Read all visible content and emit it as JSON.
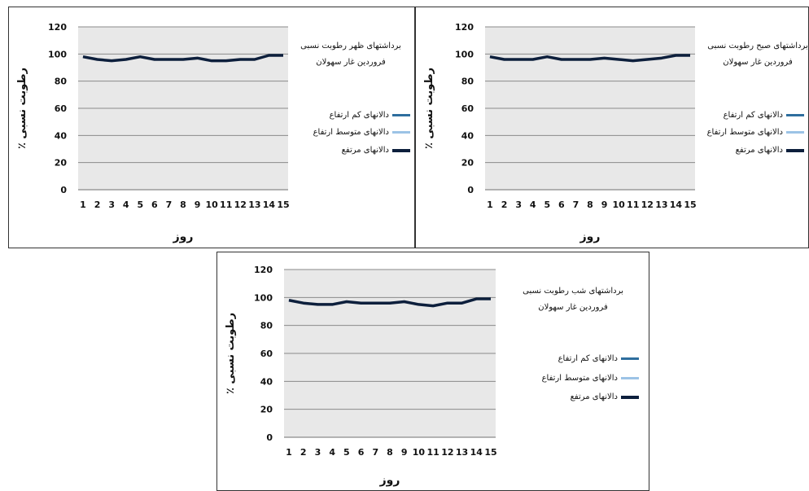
{
  "chart_data": [
    {
      "type": "line",
      "title": "برداشتهای ظهر رطوبت نسبی فروردین غار سهولان",
      "title_lines": [
        "برداشتهای ظهر رطوبت نسبی",
        "فروردین غار سهولان"
      ],
      "xlabel": "روز",
      "ylabel": "رطوبت نسبی ٪",
      "x": [
        1,
        2,
        3,
        4,
        5,
        6,
        7,
        8,
        9,
        10,
        11,
        12,
        13,
        14,
        15
      ],
      "ylim": [
        0,
        120
      ],
      "yticks": [
        0,
        20,
        40,
        60,
        80,
        100,
        120
      ],
      "grid": true,
      "legend_position": "right",
      "series": [
        {
          "name": "دالانهای کم ارتفاع",
          "color": "#2e6e9e",
          "values": [
            98,
            96,
            95,
            96,
            98,
            96,
            96,
            96,
            97,
            95,
            95,
            96,
            96,
            99,
            99
          ]
        },
        {
          "name": "دالانهای متوسط ارتفاع",
          "color": "#9cc3e6",
          "values": [
            98,
            96,
            95,
            96,
            98,
            96,
            96,
            96,
            97,
            95,
            95,
            96,
            96,
            99,
            99
          ]
        },
        {
          "name": "دالانهای مرتفع",
          "color": "#0d1f3c",
          "values": [
            98,
            96,
            95,
            96,
            98,
            96,
            96,
            96,
            97,
            95,
            95,
            96,
            96,
            99,
            99
          ]
        }
      ]
    },
    {
      "type": "line",
      "title": "برداشتهای صبح رطوبت نسبی فروردین غار سهولان",
      "title_lines": [
        "برداشتهای صبح رطوبت نسبی",
        "فروردین غار سهولان"
      ],
      "xlabel": "روز",
      "ylabel": "رطوبت نسبی ٪",
      "x": [
        1,
        2,
        3,
        4,
        5,
        6,
        7,
        8,
        9,
        10,
        11,
        12,
        13,
        14,
        15
      ],
      "ylim": [
        0,
        120
      ],
      "yticks": [
        0,
        20,
        40,
        60,
        80,
        100,
        120
      ],
      "grid": true,
      "legend_position": "right",
      "series": [
        {
          "name": "دالانهای کم ارتفاع",
          "color": "#2e6e9e",
          "values": [
            98,
            96,
            96,
            96,
            98,
            96,
            96,
            96,
            97,
            96,
            95,
            96,
            97,
            99,
            99
          ]
        },
        {
          "name": "دالانهای متوسط ارتفاع",
          "color": "#9cc3e6",
          "values": [
            98,
            96,
            96,
            96,
            98,
            96,
            96,
            96,
            97,
            96,
            95,
            96,
            97,
            99,
            99
          ]
        },
        {
          "name": "دالانهای مرتفع",
          "color": "#0d1f3c",
          "values": [
            98,
            96,
            96,
            96,
            98,
            96,
            96,
            96,
            97,
            96,
            95,
            96,
            97,
            99,
            99
          ]
        }
      ]
    },
    {
      "type": "line",
      "title": "برداشتهای شب رطوبت نسبی فروردین غار سهولان",
      "title_lines": [
        "برداشتهای شب رطوبت نسبی",
        "فروردین غار سهولان"
      ],
      "xlabel": "روز",
      "ylabel": "رطوبت نسبی ٪",
      "x": [
        1,
        2,
        3,
        4,
        5,
        6,
        7,
        8,
        9,
        10,
        11,
        12,
        13,
        14,
        15
      ],
      "ylim": [
        0,
        120
      ],
      "yticks": [
        0,
        20,
        40,
        60,
        80,
        100,
        120
      ],
      "grid": true,
      "legend_position": "right",
      "series": [
        {
          "name": "دالانهای کم ارتفاع",
          "color": "#2e6e9e",
          "values": [
            98,
            96,
            95,
            95,
            97,
            96,
            96,
            96,
            97,
            95,
            94,
            96,
            96,
            99,
            99
          ]
        },
        {
          "name": "دالانهای متوسط ارتفاع",
          "color": "#9cc3e6",
          "values": [
            98,
            96,
            95,
            95,
            97,
            96,
            96,
            96,
            97,
            95,
            94,
            96,
            96,
            99,
            99
          ]
        },
        {
          "name": "دالانهای مرتفع",
          "color": "#0d1f3c",
          "values": [
            98,
            96,
            95,
            95,
            97,
            96,
            96,
            96,
            97,
            95,
            94,
            96,
            96,
            99,
            99
          ]
        }
      ]
    }
  ]
}
